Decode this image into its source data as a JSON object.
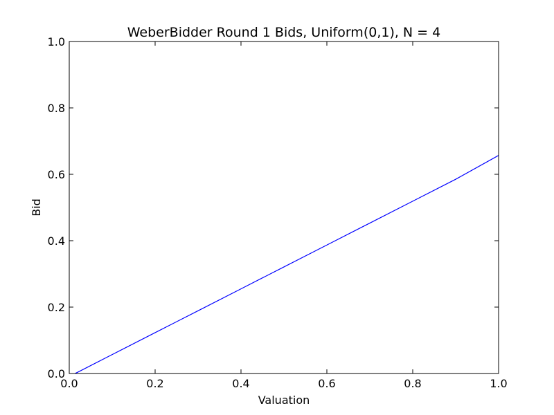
{
  "chart_data": {
    "type": "line",
    "title": "WeberBidder Round 1 Bids, Uniform(0,1), N = 4",
    "xlabel": "Valuation",
    "ylabel": "Bid",
    "xlim": [
      0.0,
      1.0
    ],
    "ylim": [
      0.0,
      1.0
    ],
    "xticks": [
      "0.0",
      "0.2",
      "0.4",
      "0.6",
      "0.8",
      "1.0"
    ],
    "yticks": [
      "0.0",
      "0.2",
      "0.4",
      "0.6",
      "0.8",
      "1.0"
    ],
    "grid": false,
    "series": [
      {
        "color": "#0000ff",
        "x": [
          0.0,
          0.01,
          0.02,
          0.1,
          0.2,
          0.3,
          0.4,
          0.5,
          0.6,
          0.7,
          0.8,
          0.9,
          1.0
        ],
        "y": [
          -0.002,
          -0.002,
          0.004,
          0.057,
          0.123,
          0.189,
          0.255,
          0.321,
          0.387,
          0.453,
          0.519,
          0.585,
          0.657
        ]
      }
    ]
  }
}
